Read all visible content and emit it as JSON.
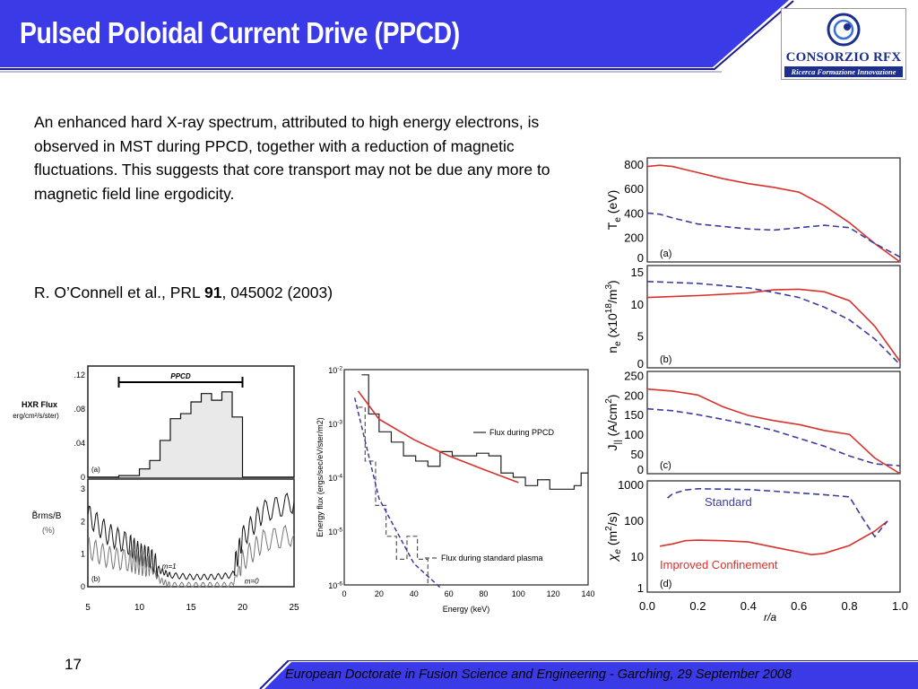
{
  "slide": {
    "title": "Pulsed Poloidal Current Drive (PPCD)",
    "body": "An enhanced hard X-ray spectrum, attributed to high energy electrons, is observed in MST during PPCD, together with a reduction of magnetic fluctuations. This suggests that core transport may not be due any more to magnetic field line ergodicity.",
    "citation": {
      "prefix": "R. O’Connell et al., PRL ",
      "volume": "91",
      "suffix": ", 045002 (2003)"
    },
    "page_number": "17",
    "footer": "European Doctorate in Fusion Science and Engineering  -  Garching, 29 September 2008",
    "colors": {
      "title_bar": "#3a3ae6",
      "footer_bar": "#3a3ae6",
      "logo_blue": "#1c2f8c",
      "red_curve": "#d8322c",
      "blue_dash": "#3c3c9c"
    }
  },
  "logo": {
    "name": "CONSORZIO RFX",
    "subtitle": "Ricerca Formazione Innovazione",
    "icon": "rfx-swirl-icon"
  },
  "chart_data": [
    {
      "id": "hxr",
      "type": "line",
      "panels": [
        {
          "label": "(a)",
          "ylabel": "HXR Flux",
          "ylabel_units": "erg/cm²/s/ster)",
          "yticks": [
            ".12",
            ".08",
            ".04",
            "0"
          ],
          "ylim": [
            0,
            0.12
          ],
          "annotation": "PPCD",
          "ppcd_span": [
            8,
            20
          ],
          "series": [
            {
              "type": "histogram",
              "x": [
                5,
                8,
                10,
                11,
                12,
                13,
                14,
                15,
                16,
                17,
                18,
                19,
                20,
                25
              ],
              "y": [
                0,
                0.002,
                0.01,
                0.02,
                0.044,
                0.07,
                0.076,
                0.09,
                0.1,
                0.092,
                0.102,
                0.072,
                0,
                0
              ]
            }
          ]
        },
        {
          "label": "(b)",
          "ylabel": "B̃rms/B",
          "ylabel_units": "(%)",
          "yticks": [
            "3",
            "2",
            "1",
            "0"
          ],
          "ylim": [
            0,
            3.3
          ],
          "series": [
            {
              "name": "m=1",
              "x": [
                5,
                7,
                9,
                10,
                11,
                12,
                13,
                15,
                17,
                19,
                20,
                22,
                25
              ],
              "y": [
                2.2,
                1.6,
                1.3,
                1.0,
                0.9,
                0.5,
                0.35,
                0.3,
                0.3,
                0.35,
                1.5,
                2.3,
                2.6
              ]
            },
            {
              "name": "m=0",
              "x": [
                5,
                7,
                9,
                10,
                11,
                12,
                13,
                15,
                17,
                19,
                20,
                22,
                25
              ],
              "y": [
                1.2,
                0.9,
                0.8,
                0.7,
                0.6,
                0.2,
                0.05,
                0.05,
                0.05,
                0.05,
                0.8,
                1.4,
                1.6
              ]
            }
          ]
        }
      ],
      "xticks": [
        "5",
        "10",
        "15",
        "20",
        "25"
      ],
      "xlim": [
        5,
        25
      ]
    },
    {
      "id": "spectrum",
      "type": "line",
      "xlabel": "Energy (keV)",
      "ylabel": "Energy flux (ergs/sec/eV/ster/m2)",
      "yscale": "log",
      "xlim": [
        0,
        140
      ],
      "ylim": [
        1e-06,
        0.01
      ],
      "xticks": [
        "0",
        "20",
        "40",
        "60",
        "80",
        "100",
        "120",
        "140"
      ],
      "yticks": [
        "10^-2",
        "10^-3",
        "10^-4",
        "10^-5",
        "10^-6"
      ],
      "series": [
        {
          "name": "Flux during PPCD",
          "style": "solid-step",
          "x": [
            10,
            14,
            20,
            27,
            34,
            41,
            48,
            55,
            62,
            69,
            76,
            83,
            90,
            97,
            104,
            111,
            118,
            125,
            132,
            136
          ],
          "y": [
            0.008,
            0.0015,
            0.0007,
            0.00045,
            0.00025,
            0.0002,
            0.00016,
            0.0003,
            0.00025,
            0.00025,
            0.00028,
            0.00025,
            0.00012,
            0.0001,
            7e-05,
            9e-05,
            6e-05,
            6e-05,
            7e-05,
            0.00012
          ]
        },
        {
          "name": "Flux during standard plasma",
          "style": "dashed-step",
          "x": [
            8,
            12,
            18,
            24,
            30,
            36,
            42,
            48
          ],
          "y": [
            0.002,
            0.0002,
            3e-05,
            8e-06,
            3e-06,
            8e-06,
            3e-06,
            1e-06
          ]
        },
        {
          "name": "",
          "style": "fit-red",
          "x": [
            8,
            20,
            40,
            60,
            80,
            100
          ],
          "y": [
            0.004,
            0.0012,
            0.0005,
            0.00025,
            0.00014,
            8e-05
          ]
        },
        {
          "name": "",
          "style": "fit-blue-dash",
          "x": [
            6,
            20,
            40,
            55
          ],
          "y": [
            0.003,
            4e-05,
            2.5e-06,
            9e-07
          ]
        }
      ]
    },
    {
      "id": "profiles",
      "type": "line",
      "xlabel": "r/a",
      "xlim": [
        0,
        1
      ],
      "xticks": [
        "0.0",
        "0.2",
        "0.4",
        "0.6",
        "0.8",
        "1.0"
      ],
      "panels": [
        {
          "label": "(a)",
          "ylabel": "Te (eV)",
          "yticks": [
            "800",
            "600",
            "400",
            "200",
            "0"
          ],
          "ylim": [
            0,
            850
          ],
          "series": [
            {
              "name": "Improved Confinement",
              "style": "solid-red",
              "x": [
                0,
                0.05,
                0.1,
                0.2,
                0.3,
                0.4,
                0.5,
                0.6,
                0.7,
                0.8,
                0.9,
                1.0
              ],
              "y": [
                780,
                790,
                780,
                730,
                680,
                640,
                610,
                570,
                460,
                320,
                150,
                0
              ]
            },
            {
              "name": "Standard",
              "style": "dashed-blue",
              "x": [
                0,
                0.05,
                0.1,
                0.2,
                0.3,
                0.4,
                0.5,
                0.6,
                0.7,
                0.8,
                0.9,
                1.0
              ],
              "y": [
                400,
                390,
                360,
                310,
                290,
                270,
                260,
                280,
                300,
                280,
                150,
                40
              ]
            }
          ]
        },
        {
          "label": "(b)",
          "ylabel": "ne (x10^18/m^3)",
          "yticks": [
            "15",
            "10",
            "5",
            "0"
          ],
          "ylim": [
            0,
            16
          ],
          "series": [
            {
              "name": "Improved Confinement",
              "style": "solid-red",
              "x": [
                0,
                0.2,
                0.4,
                0.5,
                0.6,
                0.7,
                0.8,
                0.9,
                1.0
              ],
              "y": [
                11,
                11.3,
                11.7,
                12.2,
                12.3,
                11.9,
                10.5,
                6.5,
                1
              ]
            },
            {
              "name": "Standard",
              "style": "dashed-blue",
              "x": [
                0,
                0.2,
                0.4,
                0.5,
                0.6,
                0.7,
                0.8,
                0.9,
                1.0
              ],
              "y": [
                13.5,
                13.2,
                12.5,
                11.8,
                11.0,
                9.5,
                7.5,
                4.5,
                0.5
              ]
            }
          ]
        },
        {
          "label": "(c)",
          "ylabel": "J|| (A/cm²)",
          "yticks": [
            "250",
            "200",
            "150",
            "100",
            "50",
            "0"
          ],
          "ylim": [
            0,
            260
          ],
          "series": [
            {
              "name": "Improved Confinement",
              "style": "solid-red",
              "x": [
                0,
                0.1,
                0.2,
                0.3,
                0.4,
                0.5,
                0.6,
                0.7,
                0.8,
                0.9,
                1.0
              ],
              "y": [
                215,
                210,
                200,
                170,
                148,
                135,
                125,
                110,
                100,
                40,
                0
              ]
            },
            {
              "name": "Standard",
              "style": "dashed-blue",
              "x": [
                0,
                0.1,
                0.2,
                0.3,
                0.4,
                0.5,
                0.6,
                0.7,
                0.8,
                0.9,
                1.0
              ],
              "y": [
                165,
                160,
                150,
                138,
                125,
                110,
                90,
                70,
                45,
                25,
                20
              ]
            }
          ]
        },
        {
          "label": "(d)",
          "ylabel": "χe (m²/s)",
          "yscale": "log",
          "yticks": [
            "1000",
            "100",
            "10",
            "1"
          ],
          "ylim": [
            1,
            1000
          ],
          "series": [
            {
              "name": "Improved Confinement",
              "style": "solid-red",
              "x": [
                0.05,
                0.1,
                0.15,
                0.2,
                0.3,
                0.4,
                0.5,
                0.6,
                0.65,
                0.7,
                0.8,
                0.9,
                0.95
              ],
              "y": [
                19,
                22,
                27,
                28,
                27,
                25,
                18,
                13,
                11,
                12,
                20,
                50,
                95
              ]
            },
            {
              "name": "Standard",
              "style": "dashed-blue",
              "x": [
                0.08,
                0.1,
                0.15,
                0.2,
                0.3,
                0.4,
                0.5,
                0.6,
                0.7,
                0.8,
                0.85,
                0.9,
                0.95
              ],
              "y": [
                420,
                550,
                700,
                760,
                740,
                720,
                650,
                580,
                520,
                450,
                120,
                35,
                95
              ]
            }
          ]
        }
      ],
      "annotations": [
        "Standard",
        "Improved Confinement"
      ]
    }
  ]
}
